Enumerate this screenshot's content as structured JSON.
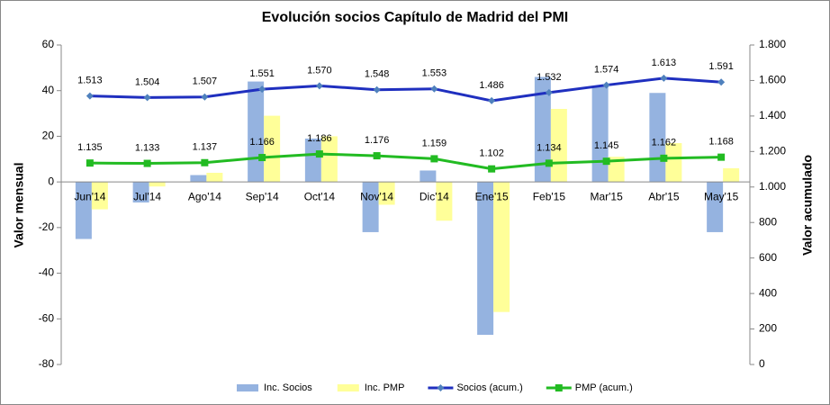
{
  "chart_data": {
    "type": "bar-line",
    "title": "Evolución socios Capítulo de Madrid del PMI",
    "ylabel": "Valor mensual",
    "y2label": "Valor acumulado",
    "categories": [
      "Jun'14",
      "Jul'14",
      "Ago'14",
      "Sep'14",
      "Oct'14",
      "Nov'14",
      "Dic'14",
      "Ene'15",
      "Feb'15",
      "Mar'15",
      "Abr'15",
      "May'15"
    ],
    "ylim": [
      -80,
      60
    ],
    "yticks": [
      -80,
      -60,
      -40,
      -20,
      0,
      20,
      40,
      60
    ],
    "y2lim": [
      0,
      1800
    ],
    "y2ticks": [
      0,
      200,
      400,
      600,
      800,
      {
        "value": 1000,
        "label": "1.000"
      },
      {
        "value": 1200,
        "label": "1.200"
      },
      {
        "value": 1400,
        "label": "1.400"
      },
      {
        "value": 1600,
        "label": "1.600"
      },
      {
        "value": 1800,
        "label": "1.800"
      }
    ],
    "grid": false,
    "legend": "bottom",
    "series": [
      {
        "name": "Inc. Socios",
        "type": "bar",
        "color": "#95b3e0",
        "values": [
          -25,
          -9,
          3,
          44,
          19,
          -22,
          5,
          -67,
          46,
          42,
          39,
          -22
        ]
      },
      {
        "name": "Inc. PMP",
        "type": "bar",
        "color": "#ffff99",
        "values": [
          -12,
          -2,
          4,
          29,
          20,
          -10,
          -17,
          -57,
          32,
          11,
          17,
          6
        ]
      },
      {
        "name": "Socios (acum.)",
        "type": "line",
        "axis": "y2",
        "color": "#1f2fbf",
        "marker": "diamond",
        "values": [
          1513,
          1504,
          1507,
          1551,
          1570,
          1548,
          1553,
          1486,
          1532,
          1574,
          1613,
          1591
        ],
        "value_labels": [
          "1.513",
          "1.504",
          "1.507",
          "1.551",
          "1.570",
          "1.548",
          "1.553",
          "1.486",
          "1.532",
          "1.574",
          "1.613",
          "1.591"
        ]
      },
      {
        "name": "PMP (acum.)",
        "type": "line",
        "axis": "y2",
        "color": "#22bb22",
        "marker": "square",
        "values": [
          1135,
          1133,
          1137,
          1166,
          1186,
          1176,
          1159,
          1102,
          1134,
          1145,
          1162,
          1168
        ],
        "value_labels": [
          "1.135",
          "1.133",
          "1.137",
          "1.166",
          "1.186",
          "1.176",
          "1.159",
          "1.102",
          "1.134",
          "1.145",
          "1.162",
          "1.168"
        ]
      }
    ]
  }
}
